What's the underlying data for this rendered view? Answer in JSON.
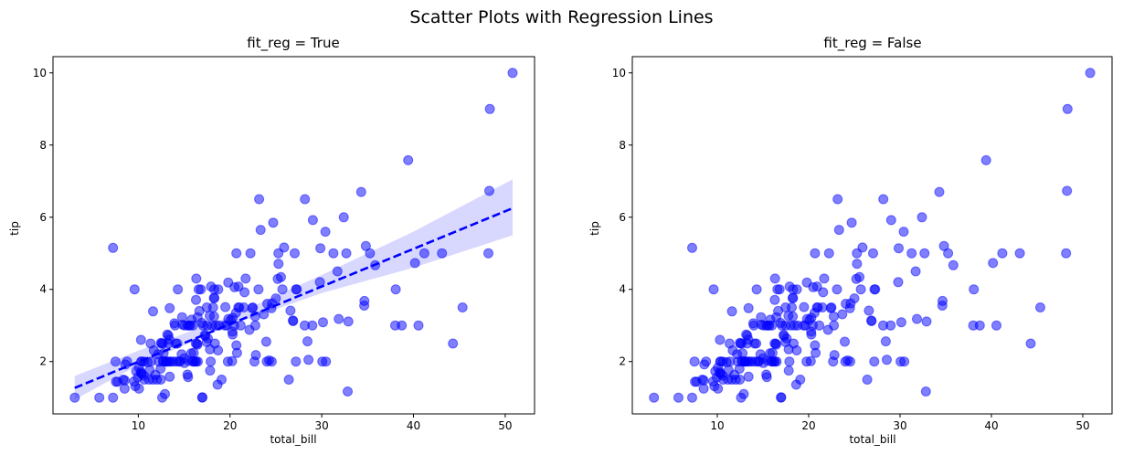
{
  "figure": {
    "suptitle": "Scatter Plots with Regression Lines"
  },
  "colors": {
    "points": "#0000ff",
    "line": "#0000ff",
    "band": "#b8b8ff"
  },
  "chart_data": [
    {
      "type": "scatter",
      "title": "fit_reg = True",
      "xlabel": "total_bill",
      "ylabel": "tip",
      "xlim": [
        0.7,
        53.2
      ],
      "ylim": [
        0.55,
        10.45
      ],
      "xticks": [
        10,
        20,
        30,
        40,
        50
      ],
      "yticks": [
        2,
        4,
        6,
        8,
        10
      ],
      "grid": false,
      "regression": {
        "x": [
          3.07,
          50.81
        ],
        "y": [
          1.27,
          6.25
        ],
        "style": "dashed"
      },
      "confidence_band": {
        "x": [
          3.07,
          10,
          20,
          30,
          40,
          50.81
        ],
        "lower": [
          0.95,
          1.9,
          3.0,
          3.9,
          4.6,
          5.5
        ],
        "upper": [
          1.6,
          2.3,
          3.25,
          4.4,
          5.6,
          7.05
        ]
      },
      "points_ref": "points"
    },
    {
      "type": "scatter",
      "title": "fit_reg = False",
      "xlabel": "total_bill",
      "ylabel": "tip",
      "xlim": [
        0.7,
        53.2
      ],
      "ylim": [
        0.55,
        10.45
      ],
      "xticks": [
        10,
        20,
        30,
        40,
        50
      ],
      "yticks": [
        2,
        4,
        6,
        8,
        10
      ],
      "grid": false,
      "points_ref": "points"
    }
  ],
  "points": [
    [
      3.07,
      1.0
    ],
    [
      5.75,
      1.0
    ],
    [
      7.25,
      1.0
    ],
    [
      7.25,
      5.15
    ],
    [
      7.51,
      2.0
    ],
    [
      7.56,
      1.44
    ],
    [
      7.74,
      1.44
    ],
    [
      8.35,
      1.5
    ],
    [
      8.51,
      1.25
    ],
    [
      8.52,
      1.48
    ],
    [
      8.58,
      1.92
    ],
    [
      8.77,
      2.0
    ],
    [
      9.55,
      1.45
    ],
    [
      9.6,
      4.0
    ],
    [
      9.68,
      1.32
    ],
    [
      9.78,
      1.73
    ],
    [
      9.94,
      1.56
    ],
    [
      10.07,
      1.83
    ],
    [
      10.07,
      1.25
    ],
    [
      10.27,
      1.71
    ],
    [
      10.29,
      2.6
    ],
    [
      10.33,
      1.67
    ],
    [
      10.33,
      2.0
    ],
    [
      10.34,
      1.66
    ],
    [
      10.34,
      2.0
    ],
    [
      10.59,
      1.61
    ],
    [
      10.63,
      2.0
    ],
    [
      10.65,
      1.5
    ],
    [
      11.02,
      1.98
    ],
    [
      11.17,
      1.5
    ],
    [
      11.24,
      1.76
    ],
    [
      11.35,
      2.5
    ],
    [
      11.38,
      2.0
    ],
    [
      11.59,
      1.5
    ],
    [
      11.61,
      3.39
    ],
    [
      11.69,
      2.31
    ],
    [
      11.87,
      1.63
    ],
    [
      12.03,
      1.5
    ],
    [
      12.16,
      2.2
    ],
    [
      12.26,
      2.0
    ],
    [
      12.43,
      1.8
    ],
    [
      12.46,
      1.5
    ],
    [
      12.48,
      2.52
    ],
    [
      12.54,
      2.5
    ],
    [
      12.6,
      1.0
    ],
    [
      12.66,
      2.5
    ],
    [
      12.69,
      2.0
    ],
    [
      12.74,
      2.01
    ],
    [
      12.76,
      2.23
    ],
    [
      12.9,
      1.1
    ],
    [
      13.0,
      2.0
    ],
    [
      13.03,
      2.0
    ],
    [
      13.13,
      2.0
    ],
    [
      13.16,
      2.75
    ],
    [
      13.27,
      2.5
    ],
    [
      13.28,
      2.72
    ],
    [
      13.37,
      2.0
    ],
    [
      13.39,
      2.61
    ],
    [
      13.42,
      3.48
    ],
    [
      13.42,
      1.58
    ],
    [
      13.51,
      2.0
    ],
    [
      13.81,
      2.0
    ],
    [
      13.94,
      3.06
    ],
    [
      14.0,
      3.0
    ],
    [
      14.07,
      2.5
    ],
    [
      14.15,
      2.0
    ],
    [
      14.26,
      2.5
    ],
    [
      14.31,
      4.0
    ],
    [
      14.48,
      2.0
    ],
    [
      14.52,
      2.0
    ],
    [
      14.73,
      2.2
    ],
    [
      14.78,
      3.23
    ],
    [
      14.83,
      3.02
    ],
    [
      15.01,
      2.09
    ],
    [
      15.04,
      1.96
    ],
    [
      15.06,
      3.0
    ],
    [
      15.36,
      1.64
    ],
    [
      15.38,
      3.0
    ],
    [
      15.42,
      1.57
    ],
    [
      15.48,
      2.02
    ],
    [
      15.53,
      3.0
    ],
    [
      15.69,
      3.0
    ],
    [
      15.77,
      2.23
    ],
    [
      15.81,
      3.16
    ],
    [
      15.95,
      2.0
    ],
    [
      15.98,
      3.0
    ],
    [
      16.0,
      2.0
    ],
    [
      16.04,
      2.24
    ],
    [
      16.21,
      2.0
    ],
    [
      16.27,
      2.5
    ],
    [
      16.29,
      3.71
    ],
    [
      16.31,
      2.0
    ],
    [
      16.32,
      4.3
    ],
    [
      16.4,
      2.5
    ],
    [
      16.45,
      2.47
    ],
    [
      16.47,
      3.23
    ],
    [
      16.49,
      2.0
    ],
    [
      16.58,
      4.0
    ],
    [
      16.66,
      3.4
    ],
    [
      16.82,
      4.0
    ],
    [
      16.93,
      3.07
    ],
    [
      16.97,
      1.0
    ],
    [
      16.99,
      1.01
    ],
    [
      17.07,
      3.0
    ],
    [
      17.26,
      2.74
    ],
    [
      17.29,
      2.71
    ],
    [
      17.46,
      2.54
    ],
    [
      17.47,
      3.5
    ],
    [
      17.51,
      3.0
    ],
    [
      17.59,
      2.64
    ],
    [
      17.78,
      3.27
    ],
    [
      17.81,
      2.34
    ],
    [
      17.82,
      1.75
    ],
    [
      17.89,
      2.0
    ],
    [
      17.92,
      4.08
    ],
    [
      18.04,
      3.0
    ],
    [
      18.15,
      3.5
    ],
    [
      18.24,
      3.76
    ],
    [
      18.26,
      3.25
    ],
    [
      18.28,
      4.0
    ],
    [
      18.29,
      3.76
    ],
    [
      18.35,
      2.5
    ],
    [
      18.43,
      3.0
    ],
    [
      18.64,
      1.36
    ],
    [
      18.69,
      2.31
    ],
    [
      18.71,
      4.0
    ],
    [
      18.78,
      3.0
    ],
    [
      19.08,
      1.5
    ],
    [
      19.44,
      3.0
    ],
    [
      19.49,
      3.51
    ],
    [
      19.65,
      3.0
    ],
    [
      19.77,
      2.0
    ],
    [
      19.81,
      4.19
    ],
    [
      19.82,
      3.18
    ],
    [
      20.08,
      3.15
    ],
    [
      20.23,
      2.01
    ],
    [
      20.27,
      2.83
    ],
    [
      20.29,
      2.75
    ],
    [
      20.29,
      3.21
    ],
    [
      20.45,
      3.0
    ],
    [
      20.49,
      4.06
    ],
    [
      20.65,
      3.35
    ],
    [
      20.69,
      2.45
    ],
    [
      20.69,
      5.0
    ],
    [
      20.76,
      2.24
    ],
    [
      20.9,
      3.5
    ],
    [
      20.92,
      4.08
    ],
    [
      21.01,
      3.5
    ],
    [
      21.16,
      3.0
    ],
    [
      21.5,
      3.5
    ],
    [
      21.58,
      3.92
    ],
    [
      21.7,
      4.3
    ],
    [
      22.12,
      2.88
    ],
    [
      22.23,
      5.0
    ],
    [
      22.42,
      3.48
    ],
    [
      22.49,
      3.5
    ],
    [
      22.67,
      2.0
    ],
    [
      22.75,
      3.25
    ],
    [
      22.76,
      3.0
    ],
    [
      22.82,
      2.18
    ],
    [
      23.1,
      4.0
    ],
    [
      23.17,
      6.5
    ],
    [
      23.33,
      5.65
    ],
    [
      23.68,
      3.31
    ],
    [
      23.95,
      2.55
    ],
    [
      24.01,
      2.0
    ],
    [
      24.06,
      3.6
    ],
    [
      24.27,
      2.03
    ],
    [
      24.52,
      3.48
    ],
    [
      24.55,
      2.0
    ],
    [
      24.59,
      3.61
    ],
    [
      24.71,
      5.85
    ],
    [
      25.0,
      3.75
    ],
    [
      25.21,
      4.29
    ],
    [
      25.28,
      5.0
    ],
    [
      25.29,
      4.71
    ],
    [
      25.56,
      4.34
    ],
    [
      25.71,
      4.0
    ],
    [
      25.89,
      5.16
    ],
    [
      26.41,
      1.5
    ],
    [
      26.59,
      3.41
    ],
    [
      26.86,
      3.14
    ],
    [
      26.88,
      3.12
    ],
    [
      27.05,
      5.0
    ],
    [
      27.18,
      2.0
    ],
    [
      27.2,
      4.0
    ],
    [
      27.28,
      4.0
    ],
    [
      28.15,
      3.0
    ],
    [
      28.17,
      6.5
    ],
    [
      28.44,
      2.56
    ],
    [
      28.55,
      2.05
    ],
    [
      28.97,
      3.0
    ],
    [
      29.03,
      5.92
    ],
    [
      29.8,
      4.2
    ],
    [
      29.85,
      5.14
    ],
    [
      30.06,
      2.0
    ],
    [
      30.14,
      3.09
    ],
    [
      30.4,
      5.6
    ],
    [
      30.46,
      2.0
    ],
    [
      31.27,
      5.0
    ],
    [
      31.71,
      4.5
    ],
    [
      31.85,
      3.18
    ],
    [
      32.4,
      6.0
    ],
    [
      32.68,
      5.0
    ],
    [
      32.83,
      1.17
    ],
    [
      32.9,
      3.11
    ],
    [
      34.3,
      6.7
    ],
    [
      34.63,
      3.55
    ],
    [
      34.65,
      3.68
    ],
    [
      34.81,
      5.2
    ],
    [
      35.26,
      5.0
    ],
    [
      35.83,
      4.67
    ],
    [
      38.01,
      3.0
    ],
    [
      38.07,
      4.0
    ],
    [
      38.73,
      3.0
    ],
    [
      39.42,
      7.58
    ],
    [
      40.17,
      4.73
    ],
    [
      40.55,
      3.0
    ],
    [
      41.19,
      5.0
    ],
    [
      43.11,
      5.0
    ],
    [
      44.3,
      2.5
    ],
    [
      45.35,
      3.5
    ],
    [
      48.17,
      5.0
    ],
    [
      48.27,
      6.73
    ],
    [
      48.33,
      9.0
    ],
    [
      50.81,
      10.0
    ]
  ]
}
